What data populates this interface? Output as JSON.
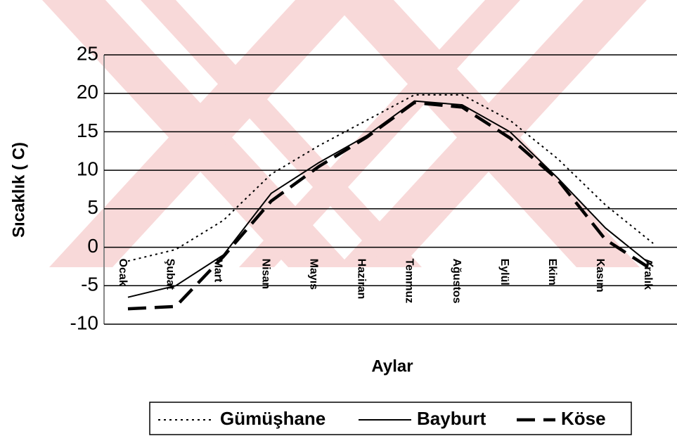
{
  "chart_data": {
    "type": "line",
    "y_label": "Sıcaklık ( C)",
    "x_label": "Aylar",
    "categories": [
      "Ocak",
      "Şubat",
      "Mart",
      "Nisan",
      "Mayıs",
      "Haziran",
      "Temmuz",
      "Ağustos",
      "Eylül",
      "Ekim",
      "Kasım",
      "Aralık"
    ],
    "series": [
      {
        "name": "Gümüşhane",
        "color": "#000000",
        "style": "dotted",
        "values": [
          -1.8,
          -0.3,
          3.5,
          9.5,
          13.2,
          16.5,
          19.8,
          19.8,
          16.5,
          11.5,
          5.5,
          0.5
        ]
      },
      {
        "name": "Bayburt",
        "color": "#000000",
        "style": "solid",
        "values": [
          -6.5,
          -5,
          -1,
          7,
          11,
          14.5,
          19,
          18.5,
          15,
          9,
          2.5,
          -2.5
        ]
      },
      {
        "name": "Köse",
        "color": "#000000",
        "style": "dashed",
        "values": [
          -8,
          -7.7,
          -1.2,
          6,
          10.5,
          14.3,
          18.8,
          18.2,
          14.2,
          8.8,
          1,
          -3
        ]
      }
    ],
    "ylim": [
      -10,
      25
    ],
    "yticks": [
      -10,
      -5,
      0,
      5,
      10,
      15,
      20,
      25
    ],
    "grid": true,
    "legend": "bottom"
  }
}
